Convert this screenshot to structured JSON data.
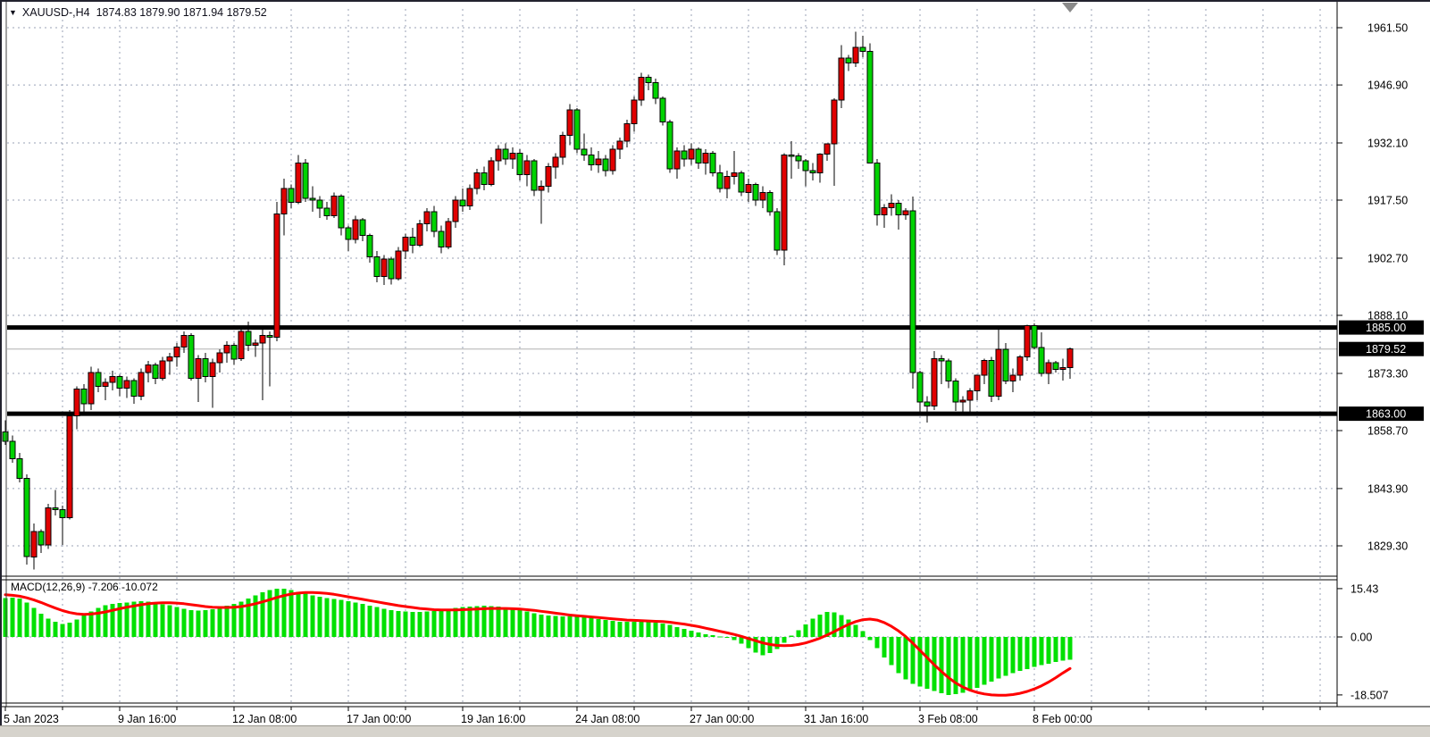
{
  "window": {
    "symbol_timeframe": "XAUUSD-,H4",
    "ohlc_text": "1874.83 1879.90 1871.94 1879.52"
  },
  "colors": {
    "bull_candle": "#e10000",
    "bear_candle": "#00d300",
    "wick": "#000000",
    "grid": "#98a2b6",
    "current_price_line": "#b0b0b0",
    "hline": "#000000",
    "price_tag_bg": "#000000",
    "price_tag_text": "#ffffff",
    "macd_histogram": "#00e000",
    "macd_signal": "#ff0000",
    "axis_text": "#000000",
    "border": "#000000"
  },
  "chart_data": {
    "type": "candlestick+macd",
    "symbol": "XAUUSD-",
    "timeframe": "H4",
    "current": {
      "open": 1874.83,
      "high": 1879.9,
      "low": 1871.94,
      "close": 1879.52
    },
    "price_axis": {
      "ticks": [
        1961.5,
        1946.9,
        1932.1,
        1917.5,
        1902.7,
        1888.1,
        1873.3,
        1858.7,
        1843.9,
        1829.3
      ],
      "tags": [
        {
          "text": "1885.00",
          "price": 1885.0
        },
        {
          "text": "1879.52",
          "price": 1879.52
        },
        {
          "text": "1863.00",
          "price": 1863.0
        }
      ]
    },
    "time_axis": {
      "labels": [
        "5 Jan 2023",
        "9 Jan 16:00",
        "12 Jan 08:00",
        "17 Jan 00:00",
        "19 Jan 16:00",
        "24 Jan 08:00",
        "27 Jan 00:00",
        "31 Jan 16:00",
        "3 Feb 08:00",
        "8 Feb 00:00"
      ]
    },
    "hlines": [
      1885.0,
      1863.0
    ],
    "current_price_line": 1879.52,
    "candles": [
      [
        1858.4,
        1861.3,
        1855.0,
        1856.0
      ],
      [
        1856.0,
        1857.5,
        1850.5,
        1851.5
      ],
      [
        1851.5,
        1853.0,
        1845.5,
        1846.5
      ],
      [
        1846.5,
        1847.5,
        1824.5,
        1826.5
      ],
      [
        1826.5,
        1835.0,
        1823.3,
        1833.0
      ],
      [
        1833.0,
        1833.5,
        1827.5,
        1829.5
      ],
      [
        1829.5,
        1840.0,
        1828.5,
        1839.0
      ],
      [
        1839.0,
        1843.5,
        1837.0,
        1838.5
      ],
      [
        1838.5,
        1839.5,
        1829.5,
        1836.5
      ],
      [
        1836.5,
        1864.0,
        1836.0,
        1862.5
      ],
      [
        1862.5,
        1870.0,
        1859.0,
        1869.3
      ],
      [
        1869.3,
        1870.5,
        1863.5,
        1865.5
      ],
      [
        1865.5,
        1875.0,
        1864.0,
        1873.5
      ],
      [
        1873.5,
        1874.5,
        1868.5,
        1870.0
      ],
      [
        1870.0,
        1872.0,
        1866.5,
        1871.0
      ],
      [
        1871.0,
        1874.0,
        1869.0,
        1872.5
      ],
      [
        1872.5,
        1873.0,
        1867.5,
        1869.5
      ],
      [
        1869.5,
        1872.5,
        1867.0,
        1871.5
      ],
      [
        1871.5,
        1872.0,
        1865.5,
        1867.5
      ],
      [
        1867.5,
        1874.5,
        1866.5,
        1873.5
      ],
      [
        1873.5,
        1876.5,
        1871.0,
        1875.5
      ],
      [
        1875.5,
        1876.0,
        1870.5,
        1872.0
      ],
      [
        1872.0,
        1877.5,
        1871.5,
        1876.5
      ],
      [
        1876.5,
        1878.5,
        1873.0,
        1877.5
      ],
      [
        1877.5,
        1881.0,
        1875.0,
        1880.0
      ],
      [
        1880.0,
        1884.0,
        1878.5,
        1883.0
      ],
      [
        1883.0,
        1883.5,
        1871.5,
        1872.0
      ],
      [
        1872.0,
        1878.0,
        1866.0,
        1877.0
      ],
      [
        1877.0,
        1878.5,
        1871.0,
        1872.5
      ],
      [
        1872.5,
        1877.0,
        1864.5,
        1876.0
      ],
      [
        1876.0,
        1879.5,
        1873.5,
        1878.5
      ],
      [
        1878.5,
        1881.5,
        1876.0,
        1880.5
      ],
      [
        1880.5,
        1881.0,
        1875.5,
        1877.0
      ],
      [
        1877.0,
        1885.0,
        1876.5,
        1884.0
      ],
      [
        1884.0,
        1886.5,
        1879.0,
        1880.5
      ],
      [
        1880.5,
        1882.0,
        1877.5,
        1881.0
      ],
      [
        1881.0,
        1884.5,
        1866.5,
        1883.0
      ],
      [
        1883.0,
        1884.0,
        1870.0,
        1882.5
      ],
      [
        1882.5,
        1917.0,
        1881.5,
        1914.0
      ],
      [
        1914.0,
        1923.0,
        1908.5,
        1920.5
      ],
      [
        1920.5,
        1921.5,
        1915.5,
        1917.0
      ],
      [
        1917.0,
        1929.0,
        1916.5,
        1927.0
      ],
      [
        1927.0,
        1928.0,
        1917.0,
        1918.0
      ],
      [
        1918.0,
        1921.0,
        1914.5,
        1917.5
      ],
      [
        1917.5,
        1918.5,
        1913.0,
        1915.5
      ],
      [
        1915.5,
        1917.0,
        1912.5,
        1913.5
      ],
      [
        1913.5,
        1919.5,
        1913.0,
        1918.5
      ],
      [
        1918.5,
        1919.0,
        1908.5,
        1910.5
      ],
      [
        1910.5,
        1911.0,
        1904.5,
        1907.5
      ],
      [
        1907.5,
        1913.5,
        1906.5,
        1912.5
      ],
      [
        1912.5,
        1913.0,
        1907.0,
        1908.5
      ],
      [
        1908.5,
        1909.0,
        1901.5,
        1903.0
      ],
      [
        1903.0,
        1904.5,
        1896.5,
        1898.0
      ],
      [
        1898.0,
        1903.5,
        1895.8,
        1902.5
      ],
      [
        1902.5,
        1903.0,
        1896.0,
        1897.5
      ],
      [
        1897.5,
        1905.5,
        1897.0,
        1904.5
      ],
      [
        1904.5,
        1909.0,
        1902.5,
        1908.0
      ],
      [
        1908.0,
        1910.5,
        1904.0,
        1906.0
      ],
      [
        1906.0,
        1912.5,
        1905.5,
        1911.5
      ],
      [
        1911.5,
        1915.5,
        1909.5,
        1914.5
      ],
      [
        1914.5,
        1916.0,
        1908.0,
        1909.5
      ],
      [
        1909.5,
        1911.0,
        1904.0,
        1905.5
      ],
      [
        1905.5,
        1913.0,
        1905.0,
        1912.0
      ],
      [
        1912.0,
        1918.5,
        1910.5,
        1917.5
      ],
      [
        1917.5,
        1920.5,
        1914.5,
        1916.0
      ],
      [
        1916.0,
        1921.5,
        1915.0,
        1920.5
      ],
      [
        1920.5,
        1925.5,
        1919.0,
        1924.5
      ],
      [
        1924.5,
        1926.0,
        1920.0,
        1921.5
      ],
      [
        1921.5,
        1928.5,
        1921.0,
        1927.5
      ],
      [
        1927.5,
        1931.5,
        1925.0,
        1930.5
      ],
      [
        1930.5,
        1932.0,
        1926.5,
        1928.0
      ],
      [
        1928.0,
        1931.0,
        1925.5,
        1929.5
      ],
      [
        1929.5,
        1930.5,
        1922.5,
        1924.0
      ],
      [
        1924.0,
        1929.0,
        1921.0,
        1927.5
      ],
      [
        1927.5,
        1928.0,
        1918.5,
        1920.0
      ],
      [
        1920.0,
        1922.5,
        1911.5,
        1921.0
      ],
      [
        1921.0,
        1927.0,
        1919.5,
        1926.0
      ],
      [
        1926.0,
        1929.5,
        1923.0,
        1928.5
      ],
      [
        1928.5,
        1935.0,
        1926.5,
        1934.0
      ],
      [
        1934.0,
        1942.0,
        1931.5,
        1940.5
      ],
      [
        1940.5,
        1941.0,
        1929.5,
        1930.5
      ],
      [
        1930.5,
        1934.5,
        1927.5,
        1929.0
      ],
      [
        1929.0,
        1931.0,
        1925.0,
        1926.5
      ],
      [
        1926.5,
        1930.0,
        1924.5,
        1928.0
      ],
      [
        1928.0,
        1929.0,
        1923.5,
        1925.0
      ],
      [
        1925.0,
        1931.5,
        1924.0,
        1930.5
      ],
      [
        1930.5,
        1933.5,
        1928.0,
        1932.5
      ],
      [
        1932.5,
        1938.0,
        1931.0,
        1937.0
      ],
      [
        1937.0,
        1944.0,
        1935.0,
        1943.0
      ],
      [
        1943.0,
        1950.0,
        1941.5,
        1948.8
      ],
      [
        1948.8,
        1949.5,
        1945.5,
        1947.5
      ],
      [
        1947.5,
        1948.5,
        1942.0,
        1943.5
      ],
      [
        1943.5,
        1944.0,
        1936.5,
        1937.5
      ],
      [
        1937.5,
        1938.0,
        1924.5,
        1925.5
      ],
      [
        1925.5,
        1931.0,
        1923.0,
        1930.0
      ],
      [
        1930.0,
        1931.5,
        1926.0,
        1928.0
      ],
      [
        1928.0,
        1932.0,
        1926.5,
        1930.5
      ],
      [
        1930.5,
        1931.0,
        1925.5,
        1927.0
      ],
      [
        1927.0,
        1930.5,
        1924.0,
        1929.5
      ],
      [
        1929.5,
        1930.0,
        1923.5,
        1924.5
      ],
      [
        1924.5,
        1926.5,
        1919.5,
        1920.5
      ],
      [
        1920.5,
        1925.0,
        1918.0,
        1923.5
      ],
      [
        1923.5,
        1930.0,
        1921.5,
        1924.5
      ],
      [
        1924.5,
        1925.0,
        1918.5,
        1919.5
      ],
      [
        1919.5,
        1923.0,
        1917.0,
        1921.5
      ],
      [
        1921.5,
        1922.0,
        1916.0,
        1917.5
      ],
      [
        1917.5,
        1921.0,
        1915.5,
        1919.5
      ],
      [
        1919.5,
        1920.0,
        1913.5,
        1914.5
      ],
      [
        1914.5,
        1915.5,
        1903.5,
        1904.7
      ],
      [
        1904.7,
        1929.5,
        1900.9,
        1929.0
      ],
      [
        1929.0,
        1932.5,
        1923.0,
        1928.8
      ],
      [
        1928.8,
        1929.5,
        1925.5,
        1927.5
      ],
      [
        1927.5,
        1928.0,
        1921.0,
        1925.0
      ],
      [
        1925.0,
        1927.0,
        1922.5,
        1924.5
      ],
      [
        1924.5,
        1929.5,
        1922.0,
        1929.3
      ],
      [
        1929.3,
        1932.0,
        1927.5,
        1931.9
      ],
      [
        1931.9,
        1943.5,
        1921.2,
        1943.0
      ],
      [
        1943.0,
        1957.0,
        1941.0,
        1953.7
      ],
      [
        1953.7,
        1954.5,
        1950.5,
        1952.5
      ],
      [
        1952.5,
        1960.5,
        1951.5,
        1956.5
      ],
      [
        1956.5,
        1959.4,
        1954.0,
        1955.5
      ],
      [
        1955.5,
        1957.5,
        1926.8,
        1927.0
      ],
      [
        1927.0,
        1928.0,
        1911.0,
        1913.8
      ],
      [
        1913.8,
        1916.5,
        1910.5,
        1915.6
      ],
      [
        1915.6,
        1919.0,
        1913.5,
        1916.7
      ],
      [
        1916.7,
        1917.5,
        1910.0,
        1913.8
      ],
      [
        1913.8,
        1915.5,
        1912.5,
        1914.8
      ],
      [
        1914.8,
        1918.4,
        1869.4,
        1873.5
      ],
      [
        1873.5,
        1874.0,
        1863.0,
        1866.0
      ],
      [
        1866.0,
        1867.5,
        1860.7,
        1865.0
      ],
      [
        1865.0,
        1879.0,
        1864.0,
        1877.0
      ],
      [
        1877.0,
        1878.0,
        1870.5,
        1876.5
      ],
      [
        1876.5,
        1877.0,
        1869.5,
        1871.3
      ],
      [
        1871.3,
        1872.0,
        1863.7,
        1866.0
      ],
      [
        1866.0,
        1867.5,
        1862.5,
        1866.5
      ],
      [
        1866.5,
        1869.5,
        1863.5,
        1868.8
      ],
      [
        1868.8,
        1873.0,
        1866.5,
        1872.8
      ],
      [
        1872.8,
        1877.0,
        1870.5,
        1876.6
      ],
      [
        1876.6,
        1877.5,
        1866.0,
        1867.5
      ],
      [
        1867.5,
        1884.5,
        1866.5,
        1879.5
      ],
      [
        1879.5,
        1881.0,
        1870.5,
        1871.4
      ],
      [
        1871.4,
        1874.5,
        1868.5,
        1872.8
      ],
      [
        1872.8,
        1878.0,
        1871.5,
        1877.5
      ],
      [
        1877.5,
        1885.7,
        1876.5,
        1885.5
      ],
      [
        1885.5,
        1886.0,
        1879.5,
        1879.9
      ],
      [
        1879.9,
        1883.8,
        1872.5,
        1873.3
      ],
      [
        1873.3,
        1876.8,
        1870.5,
        1876.0
      ],
      [
        1876.0,
        1876.5,
        1873.5,
        1874.3
      ],
      [
        1874.3,
        1877.0,
        1871.5,
        1874.8
      ],
      [
        1874.83,
        1879.9,
        1871.94,
        1879.52
      ]
    ],
    "macd": {
      "header": "MACD(12,26,9) -7.206 -10.072",
      "name": "MACD",
      "params": "12,26,9",
      "macd_value": -7.206,
      "signal_value": -10.072,
      "axis_ticks": [
        15.43,
        0.0,
        -18.507
      ],
      "histogram": [
        12.4,
        12.6,
        12.2,
        11.0,
        9.2,
        7.4,
        5.8,
        4.8,
        4.2,
        4.6,
        5.6,
        6.8,
        8.2,
        9.3,
        10.1,
        10.6,
        10.9,
        11.0,
        11.2,
        11.4,
        11.2,
        10.8,
        10.4,
        10.1,
        9.6,
        9.0,
        8.6,
        8.4,
        8.5,
        8.8,
        9.4,
        10.0,
        10.6,
        11.2,
        12.2,
        13.3,
        14.2,
        15.0,
        15.43,
        15.4,
        15.0,
        14.4,
        13.8,
        13.3,
        12.8,
        12.4,
        12.1,
        11.8,
        11.4,
        11.0,
        10.5,
        10.0,
        9.5,
        9.0,
        8.6,
        8.3,
        8.1,
        8.0,
        8.0,
        8.1,
        8.3,
        8.6,
        8.9,
        9.2,
        9.5,
        9.7,
        9.9,
        10.0,
        9.9,
        9.7,
        9.4,
        9.0,
        8.6,
        8.1,
        7.6,
        7.2,
        6.9,
        6.7,
        6.6,
        6.6,
        6.5,
        6.3,
        6.0,
        5.7,
        5.4,
        5.1,
        4.9,
        4.8,
        4.8,
        4.9,
        4.8,
        4.6,
        4.3,
        3.8,
        3.2,
        2.6,
        2.0,
        1.4,
        0.9,
        0.5,
        0.1,
        -0.3,
        -1.0,
        -2.2,
        -3.6,
        -5.0,
        -5.8,
        -5.2,
        -3.8,
        -1.8,
        0.4,
        2.2,
        4.0,
        5.8,
        7.2,
        8.0,
        7.8,
        7.0,
        5.6,
        3.8,
        1.8,
        -1.0,
        -3.5,
        -6.5,
        -9.0,
        -11.5,
        -13.5,
        -15.0,
        -15.8,
        -16.5,
        -17.3,
        -18.0,
        -18.507,
        -18.3,
        -17.8,
        -17.0,
        -16.2,
        -15.2,
        -14.2,
        -13.3,
        -12.4,
        -11.6,
        -10.9,
        -10.2,
        -9.6,
        -9.0,
        -8.5,
        -8.0,
        -7.6,
        -7.206
      ],
      "signal": [
        13.5,
        13.3,
        13.0,
        12.5,
        11.8,
        11.0,
        10.1,
        9.2,
        8.4,
        7.8,
        7.4,
        7.2,
        7.3,
        7.6,
        8.0,
        8.5,
        9.0,
        9.5,
        9.9,
        10.3,
        10.6,
        10.8,
        10.9,
        10.9,
        10.8,
        10.6,
        10.3,
        10.0,
        9.7,
        9.5,
        9.4,
        9.4,
        9.5,
        9.7,
        10.1,
        10.6,
        11.2,
        11.9,
        12.6,
        13.2,
        13.7,
        14.0,
        14.2,
        14.2,
        14.1,
        13.9,
        13.6,
        13.2,
        12.8,
        12.4,
        12.0,
        11.6,
        11.2,
        10.8,
        10.4,
        10.0,
        9.7,
        9.4,
        9.1,
        8.9,
        8.7,
        8.6,
        8.6,
        8.6,
        8.7,
        8.8,
        8.9,
        9.0,
        9.1,
        9.1,
        9.1,
        9.0,
        8.9,
        8.7,
        8.5,
        8.2,
        7.9,
        7.6,
        7.3,
        7.0,
        6.8,
        6.6,
        6.4,
        6.2,
        6.0,
        5.8,
        5.6,
        5.4,
        5.3,
        5.2,
        5.1,
        5.0,
        4.9,
        4.7,
        4.4,
        4.1,
        3.7,
        3.3,
        2.8,
        2.3,
        1.8,
        1.3,
        0.8,
        0.2,
        -0.5,
        -1.2,
        -1.9,
        -2.4,
        -2.7,
        -2.8,
        -2.7,
        -2.4,
        -1.9,
        -1.2,
        -0.4,
        0.6,
        1.7,
        2.9,
        4.0,
        4.9,
        5.5,
        5.7,
        5.4,
        4.6,
        3.4,
        1.9,
        0.1,
        -2.0,
        -4.3,
        -6.6,
        -8.9,
        -11.0,
        -13.0,
        -14.7,
        -16.0,
        -17.0,
        -17.7,
        -18.2,
        -18.5,
        -18.6,
        -18.6,
        -18.4,
        -18.0,
        -17.4,
        -16.6,
        -15.6,
        -14.4,
        -13.0,
        -11.5,
        -10.072
      ]
    }
  }
}
